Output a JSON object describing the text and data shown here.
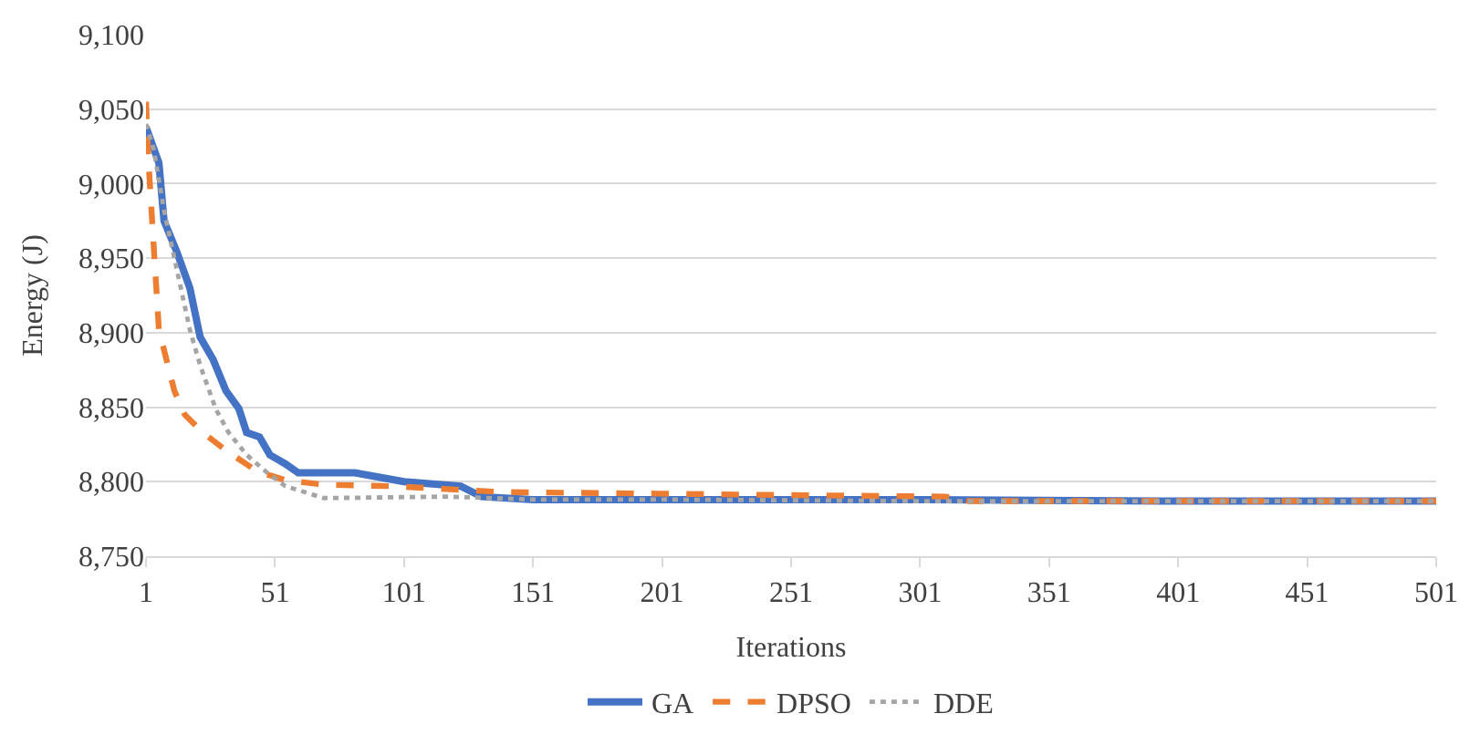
{
  "chart_data": {
    "type": "line",
    "xlabel": "Iterations",
    "ylabel": "Energy (J)",
    "xlim": [
      1,
      501
    ],
    "xticks": [
      1,
      51,
      101,
      151,
      201,
      251,
      301,
      351,
      401,
      451,
      501
    ],
    "ylim": [
      8750,
      9100
    ],
    "yticks": [
      {
        "value": 8750,
        "label": "8,750"
      },
      {
        "value": 8800,
        "label": "8,800"
      },
      {
        "value": 8850,
        "label": "8,850"
      },
      {
        "value": 8900,
        "label": "8,900"
      },
      {
        "value": 8950,
        "label": "8,950"
      },
      {
        "value": 9000,
        "label": "9,000"
      },
      {
        "value": 9050,
        "label": "9,050"
      },
      {
        "value": 9100,
        "label": "9,100"
      }
    ],
    "grid": "y",
    "legend": "bottom",
    "marker": "none",
    "series": [
      {
        "name": "GA",
        "color": "#4472c4",
        "line_style": "solid",
        "x": [
          1,
          6,
          8,
          13,
          18,
          22,
          27,
          32,
          37,
          40,
          45,
          49,
          55,
          60,
          82,
          101,
          123,
          131,
          151,
          201,
          301,
          401,
          501
        ],
        "values": [
          9038,
          9014,
          8975,
          8954,
          8930,
          8897,
          8882,
          8861,
          8849,
          8833,
          8830,
          8818,
          8812,
          8806,
          8806,
          8800,
          8797,
          8790,
          8788,
          8788,
          8788,
          8787,
          8787
        ]
      },
      {
        "name": "DPSO",
        "color": "#ed7d31",
        "line_style": "dashed",
        "x": [
          1,
          2,
          6,
          12,
          16,
          23,
          32,
          44,
          55,
          70,
          96,
          140,
          200,
          250,
          311,
          320,
          401,
          501
        ],
        "values": [
          9055,
          9014,
          8902,
          8861,
          8845,
          8833,
          8821,
          8807,
          8801,
          8798,
          8797,
          8793,
          8792,
          8791,
          8790,
          8787,
          8787,
          8787
        ]
      },
      {
        "name": "DDE",
        "color": "#a5a5a5",
        "line_style": "dotted",
        "x": [
          1,
          4,
          8,
          13,
          18,
          22,
          28,
          33,
          40,
          48,
          55,
          70,
          118,
          151,
          201,
          301,
          401,
          501
        ],
        "values": [
          9040,
          9023,
          8982,
          8942,
          8902,
          8878,
          8849,
          8833,
          8818,
          8806,
          8797,
          8789,
          8790,
          8788,
          8788,
          8787,
          8787,
          8787
        ]
      }
    ]
  }
}
